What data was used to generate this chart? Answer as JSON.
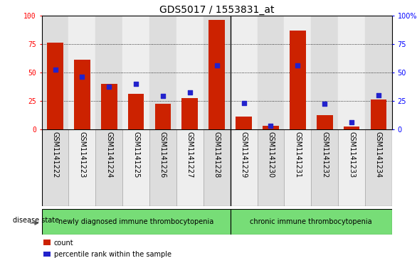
{
  "title": "GDS5017 / 1553831_at",
  "samples": [
    "GSM1141222",
    "GSM1141223",
    "GSM1141224",
    "GSM1141225",
    "GSM1141226",
    "GSM1141227",
    "GSM1141228",
    "GSM1141229",
    "GSM1141230",
    "GSM1141231",
    "GSM1141232",
    "GSM1141233",
    "GSM1141234"
  ],
  "counts": [
    76,
    61,
    40,
    31,
    22,
    27,
    96,
    11,
    3,
    87,
    12,
    2,
    26
  ],
  "percentiles": [
    52,
    46,
    37,
    40,
    29,
    32,
    56,
    23,
    3,
    56,
    22,
    6,
    30
  ],
  "bar_color": "#cc2200",
  "dot_color": "#2222cc",
  "group1_label": "newly diagnosed immune thrombocytopenia",
  "group2_label": "chronic immune thrombocytopenia",
  "group1_count": 7,
  "group2_count": 6,
  "disease_state_label": "disease state",
  "legend_count": "count",
  "legend_percentile": "percentile rank within the sample",
  "ylim": [
    0,
    100
  ],
  "yticks": [
    0,
    25,
    50,
    75,
    100
  ],
  "col_bg_even": "#dddddd",
  "col_bg_odd": "#eeeeee",
  "green_box_color": "#77dd77",
  "title_fontsize": 10,
  "tick_fontsize": 7,
  "label_fontsize": 7
}
